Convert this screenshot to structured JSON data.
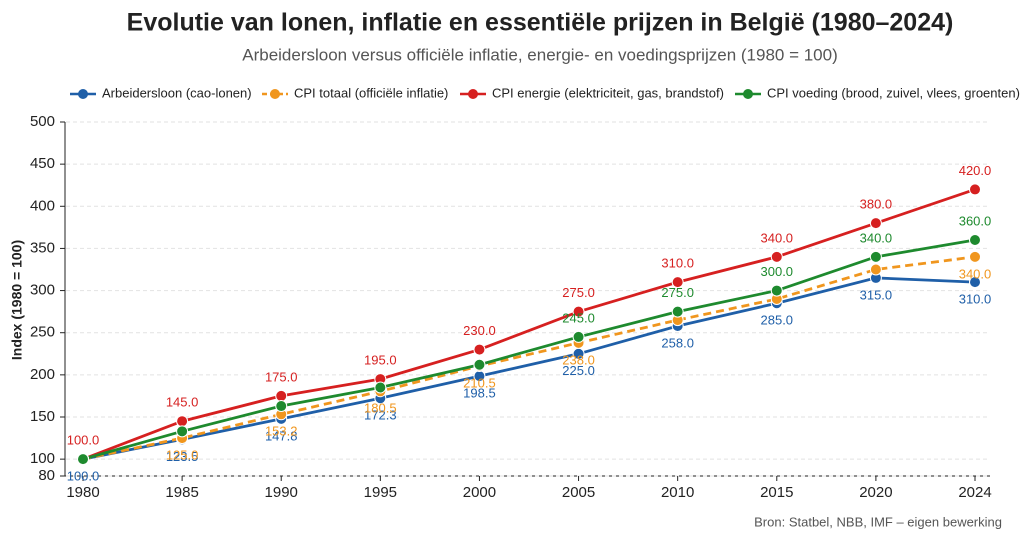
{
  "chart_data": {
    "type": "line",
    "title": "Evolutie van lonen, inflatie en essentiële prijzen in België (1980–2024)",
    "subtitle": "Arbeidersloon versus officiële inflatie, energie- en voedingsprijzen (1980 = 100)",
    "y_label": "Index (1980 = 100)",
    "source": "Bron: Statbel, NBB, IMF – eigen bewerking",
    "categories": [
      "1980",
      "1985",
      "1990",
      "1995",
      "2000",
      "2005",
      "2010",
      "2015",
      "2020",
      "2024"
    ],
    "ylim": [
      80,
      500
    ],
    "yticks": [
      80,
      100,
      150,
      200,
      250,
      300,
      350,
      400,
      450,
      500
    ],
    "grid": true,
    "series": [
      {
        "name": "Arbeidersloon (cao-lonen)",
        "color": "#1f5fa8",
        "dashed": false,
        "label_side": "below",
        "values": [
          100.0,
          123.5,
          147.8,
          172.3,
          198.5,
          225.0,
          258.0,
          285.0,
          315.0,
          310.0
        ],
        "value_labels": [
          "100.0",
          "123.5",
          "147.8",
          "172.3",
          "198.5",
          "225.0",
          "258.0",
          "285.0",
          "315.0",
          "310.0"
        ]
      },
      {
        "name": "CPI totaal (officiële inflatie)",
        "color": "#f0961e",
        "dashed": true,
        "label_side": "below",
        "values": [
          100.0,
          125.0,
          153.2,
          180.5,
          210.5,
          238.0,
          265.0,
          290.0,
          325.0,
          340.0
        ],
        "value_labels": [
          null,
          "125.0",
          "153.2",
          "180.5",
          "210.5",
          "238.0",
          null,
          null,
          null,
          "340.0"
        ]
      },
      {
        "name": "CPI energie (elektriciteit, gas, brandstof)",
        "color": "#d62020",
        "dashed": false,
        "label_side": "above",
        "values": [
          100.0,
          145.0,
          175.0,
          195.0,
          230.0,
          275.0,
          310.0,
          340.0,
          380.0,
          420.0
        ],
        "value_labels": [
          "100.0",
          "145.0",
          "175.0",
          "195.0",
          "230.0",
          "275.0",
          "310.0",
          "340.0",
          "380.0",
          "420.0"
        ]
      },
      {
        "name": "CPI voeding (brood, zuivel, vlees, groenten)",
        "color": "#1e8a2e",
        "dashed": false,
        "label_side": "above",
        "values": [
          100.0,
          133.0,
          163.0,
          185.0,
          212.0,
          245.0,
          275.0,
          300.0,
          340.0,
          360.0
        ],
        "value_labels": [
          null,
          null,
          null,
          null,
          null,
          "245.0",
          "275.0",
          "300.0",
          "340.0",
          "360.0"
        ]
      }
    ]
  }
}
